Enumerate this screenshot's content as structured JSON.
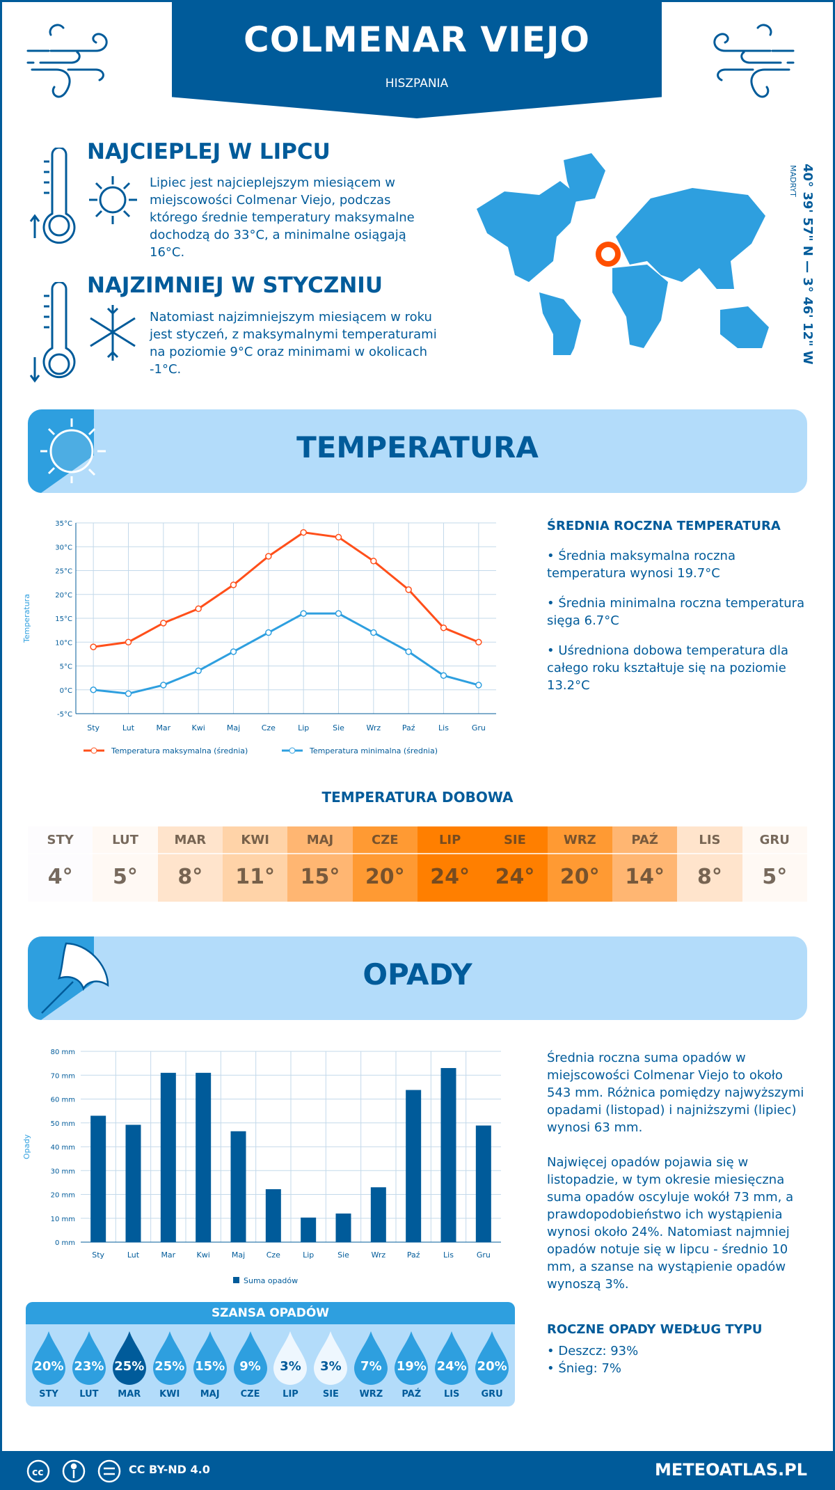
{
  "header": {
    "title": "COLMENAR VIEJO",
    "country": "HISZPANIA"
  },
  "hot": {
    "title": "NAJCIEPLEJ W LIPCU",
    "text": "Lipiec jest najcieplejszym miesiącem w miejscowości Colmenar Viejo, podczas którego średnie temperatury maksymalne dochodzą do 33°C, a minimalne osiągają 16°C."
  },
  "cold": {
    "title": "NAJZIMNIEJ W STYCZNIU",
    "text": "Natomiast najzimniejszym miesiącem w roku jest styczeń, z maksymalnymi temperaturami na poziomie 9°C oraz minimami w okolicach -1°C."
  },
  "map": {
    "coords": "40° 39' 57\" N — 3° 46' 12\" W",
    "capital": "MADRYT",
    "marker_color": "#ff4f00"
  },
  "temperature": {
    "section_title": "TEMPERATURA",
    "summary": {
      "title": "ŚREDNIA ROCZNA TEMPERATURA",
      "items": [
        "• Średnia maksymalna roczna temperatura wynosi 19.7°C",
        "• Średnia minimalna roczna temperatura sięga 6.7°C",
        "• Uśredniona dobowa temperatura dla całego roku kształtuje się na poziomie 13.2°C"
      ]
    },
    "daily_title": "TEMPERATURA DOBOWA",
    "daily": [
      {
        "m": "STY",
        "v": "4°",
        "c": "#fdfcfe"
      },
      {
        "m": "LUT",
        "v": "5°",
        "c": "#fff9f4"
      },
      {
        "m": "MAR",
        "v": "8°",
        "c": "#ffe4cc"
      },
      {
        "m": "KWI",
        "v": "11°",
        "c": "#ffd3a8"
      },
      {
        "m": "MAJ",
        "v": "15°",
        "c": "#ffb672"
      },
      {
        "m": "CZE",
        "v": "20°",
        "c": "#ff9a33"
      },
      {
        "m": "LIP",
        "v": "24°",
        "c": "#ff7f00"
      },
      {
        "m": "SIE",
        "v": "24°",
        "c": "#ff7f00"
      },
      {
        "m": "WRZ",
        "v": "20°",
        "c": "#ff9a33"
      },
      {
        "m": "PAŹ",
        "v": "14°",
        "c": "#ffb672"
      },
      {
        "m": "LIS",
        "v": "8°",
        "c": "#ffe4cc"
      },
      {
        "m": "GRU",
        "v": "5°",
        "c": "#fff9f4"
      }
    ]
  },
  "precipitation": {
    "section_title": "OPADY",
    "text1": "Średnia roczna suma opadów w miejscowości Colmenar Viejo to około 543 mm. Różnica pomiędzy najwyższymi opadami (listopad) i najniższymi (lipiec) wynosi 63 mm.",
    "text2": "Najwięcej opadów pojawia się w listopadzie, w tym okresie miesięczna suma opadów oscyluje wokół 73 mm, a prawdopodobieństwo ich wystąpienia wynosi około 24%. Natomiast najmniej opadów notuje się w lipcu - średnio 10 mm, a szanse na wystąpienie opadów wynoszą 3%.",
    "types_title": "ROCZNE OPADY WEDŁUG TYPU",
    "types": [
      "• Deszcz: 93%",
      "• Śnieg: 7%"
    ],
    "chance_title": "SZANSA OPADÓW",
    "chance": [
      {
        "m": "STY",
        "v": "20%",
        "c": "#2e9fdf"
      },
      {
        "m": "LUT",
        "v": "23%",
        "c": "#2e9fdf"
      },
      {
        "m": "MAR",
        "v": "25%",
        "c": "#005b9a"
      },
      {
        "m": "KWI",
        "v": "25%",
        "c": "#2e9fdf"
      },
      {
        "m": "MAJ",
        "v": "15%",
        "c": "#2e9fdf"
      },
      {
        "m": "CZE",
        "v": "9%",
        "c": "#2e9fdf"
      },
      {
        "m": "LIP",
        "v": "3%",
        "c": "#eef7fe"
      },
      {
        "m": "SIE",
        "v": "3%",
        "c": "#eef7fe"
      },
      {
        "m": "WRZ",
        "v": "7%",
        "c": "#2e9fdf"
      },
      {
        "m": "PAŹ",
        "v": "19%",
        "c": "#2e9fdf"
      },
      {
        "m": "LIS",
        "v": "24%",
        "c": "#2e9fdf"
      },
      {
        "m": "GRU",
        "v": "20%",
        "c": "#2e9fdf"
      }
    ]
  },
  "chart_data": [
    {
      "type": "line",
      "ylabel": "Temperatura",
      "ylim": [
        -5,
        35
      ],
      "yticks": [
        "-5°C",
        "0°C",
        "5°C",
        "10°C",
        "15°C",
        "20°C",
        "25°C",
        "30°C",
        "35°C"
      ],
      "grid": true,
      "legend": "bottom",
      "categories": [
        "Sty",
        "Lut",
        "Mar",
        "Kwi",
        "Maj",
        "Cze",
        "Lip",
        "Sie",
        "Wrz",
        "Paź",
        "Lis",
        "Gru"
      ],
      "series": [
        {
          "name": "Temperatura maksymalna (średnia)",
          "color": "#ff4f1a",
          "values": [
            9,
            10,
            14,
            17,
            22,
            28,
            33,
            32,
            27,
            21,
            13,
            10
          ]
        },
        {
          "name": "Temperatura minimalna (średnia)",
          "color": "#2e9fdf",
          "values": [
            0,
            -0.8,
            1,
            4,
            8,
            12,
            16,
            16,
            12,
            8,
            3,
            1
          ]
        }
      ]
    },
    {
      "type": "bar",
      "ylabel": "Opady",
      "ylim": [
        0,
        80
      ],
      "yticks": [
        "0 mm",
        "10 mm",
        "20 mm",
        "30 mm",
        "40 mm",
        "50 mm",
        "60 mm",
        "70 mm",
        "80 mm"
      ],
      "grid": true,
      "legend": "bottom",
      "categories": [
        "Sty",
        "Lut",
        "Mar",
        "Kwi",
        "Maj",
        "Cze",
        "Lip",
        "Sie",
        "Wrz",
        "Paź",
        "Lis",
        "Gru"
      ],
      "series": [
        {
          "name": "Suma opadów",
          "color": "#005b9a",
          "values": [
            53,
            49.2,
            71,
            71,
            46.5,
            22.2,
            10.3,
            12,
            23,
            63.8,
            73,
            48.9
          ]
        }
      ]
    }
  ],
  "footer": {
    "license": "CC BY-ND 4.0",
    "site": "METEOATLAS.PL"
  }
}
